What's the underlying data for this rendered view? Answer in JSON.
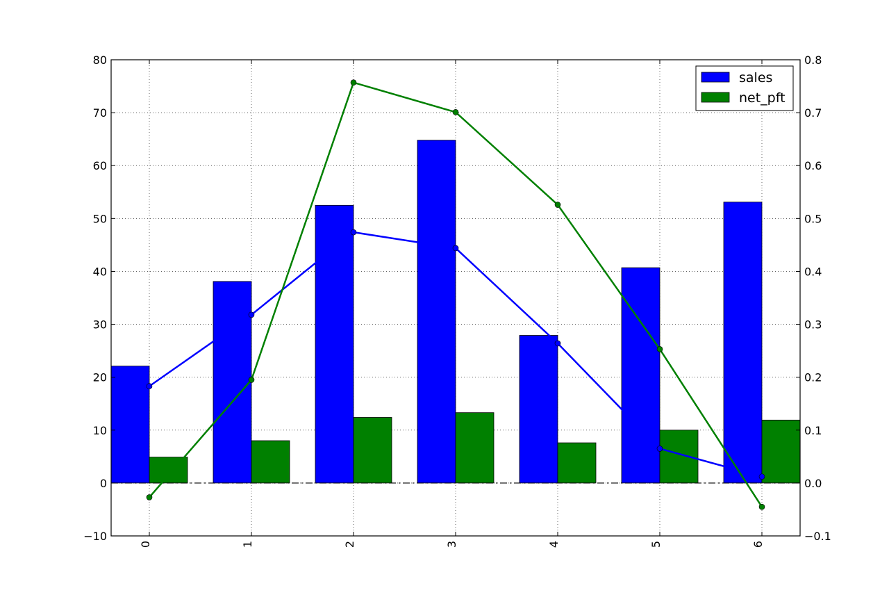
{
  "chart_data": {
    "type": "bar",
    "categories": [
      "0",
      "1",
      "2",
      "3",
      "4",
      "5",
      "6"
    ],
    "series": [
      {
        "name": "sales",
        "color": "#0000ff",
        "values": [
          22.1,
          38.1,
          52.5,
          64.8,
          27.9,
          40.7,
          53.1
        ]
      },
      {
        "name": "net_pft",
        "color": "#008000",
        "values": [
          4.9,
          8.0,
          12.4,
          13.3,
          7.6,
          10.0,
          11.9
        ]
      }
    ],
    "lines": [
      {
        "color": "#0000ff",
        "axis": "left",
        "values": [
          18.3,
          31.8,
          47.4,
          44.4,
          26.4,
          6.5,
          1.2
        ]
      },
      {
        "color": "#008000",
        "axis": "right",
        "values": [
          -0.027,
          0.195,
          0.757,
          0.701,
          0.526,
          0.253,
          -0.045
        ]
      }
    ],
    "ylim": [
      -10,
      80
    ],
    "y2lim": [
      -0.1,
      0.8
    ],
    "yticks": [
      "−10",
      "0",
      "10",
      "20",
      "30",
      "40",
      "50",
      "60",
      "70",
      "80"
    ],
    "y2ticks": [
      "−0.1",
      "0.0",
      "0.1",
      "0.2",
      "0.3",
      "0.4",
      "0.5",
      "0.6",
      "0.7",
      "0.8"
    ],
    "grid": true,
    "zero_line": "dash-dot",
    "legend": "top-right",
    "xtick_rotation": "vertical"
  }
}
